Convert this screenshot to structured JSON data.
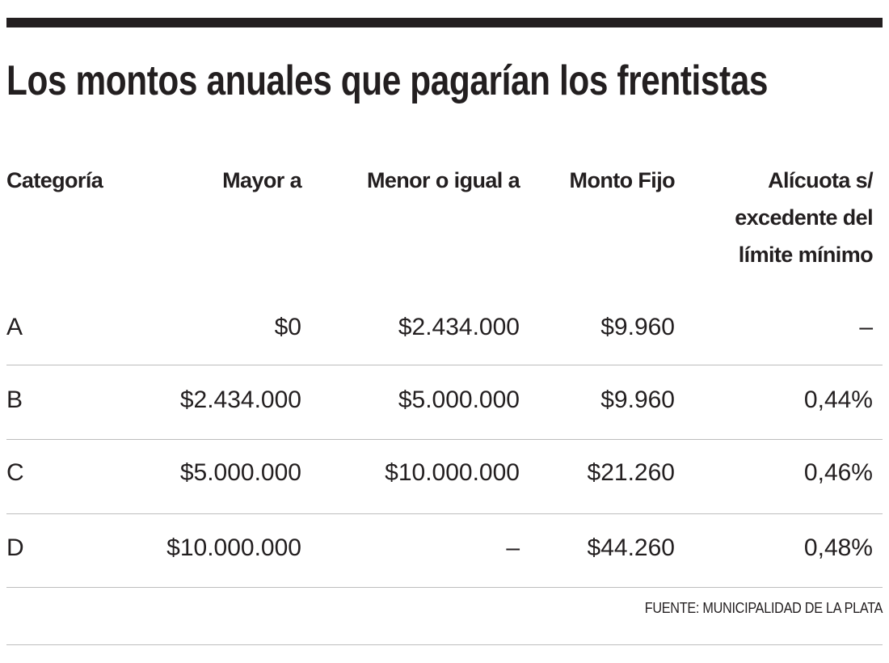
{
  "title": "Los montos anuales que pagarían los frentistas",
  "headers": [
    "Categoría",
    "Mayor a",
    "Menor o igual a",
    "Monto Fijo",
    "Alícuota s/ excedente del límite mínimo"
  ],
  "rows": [
    [
      "A",
      "$0",
      "$2.434.000",
      "$9.960",
      "–"
    ],
    [
      "B",
      "$2.434.000",
      "$5.000.000",
      "$9.960",
      "0,44%"
    ],
    [
      "C",
      "$5.000.000",
      "$10.000.000",
      "$21.260",
      "0,46%"
    ],
    [
      "D",
      "$10.000.000",
      "–",
      "$44.260",
      "0,48%"
    ]
  ],
  "source": "FUENTE: MUNICIPALIDAD DE LA PLATA"
}
